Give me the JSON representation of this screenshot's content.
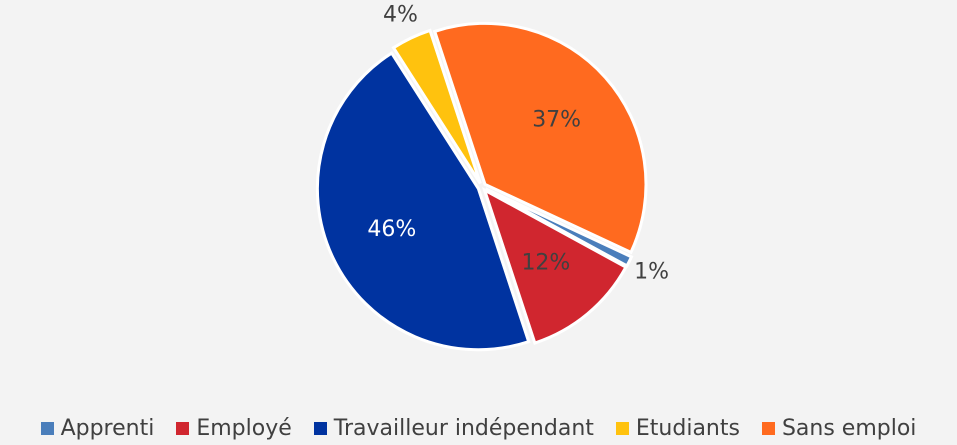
{
  "chart_data": {
    "type": "pie",
    "categories": [
      "Apprenti",
      "Employé",
      "Travailleur indépendant",
      "Etudiants",
      "Sans emploi"
    ],
    "values": [
      1,
      12,
      46,
      4,
      37
    ],
    "value_labels": [
      "1%",
      "12%",
      "46%",
      "4%",
      "37%"
    ],
    "colors": [
      "#4a7ebb",
      "#d0262f",
      "#0033a0",
      "#ffc20e",
      "#ff6a1f"
    ],
    "legend": "bottom"
  }
}
